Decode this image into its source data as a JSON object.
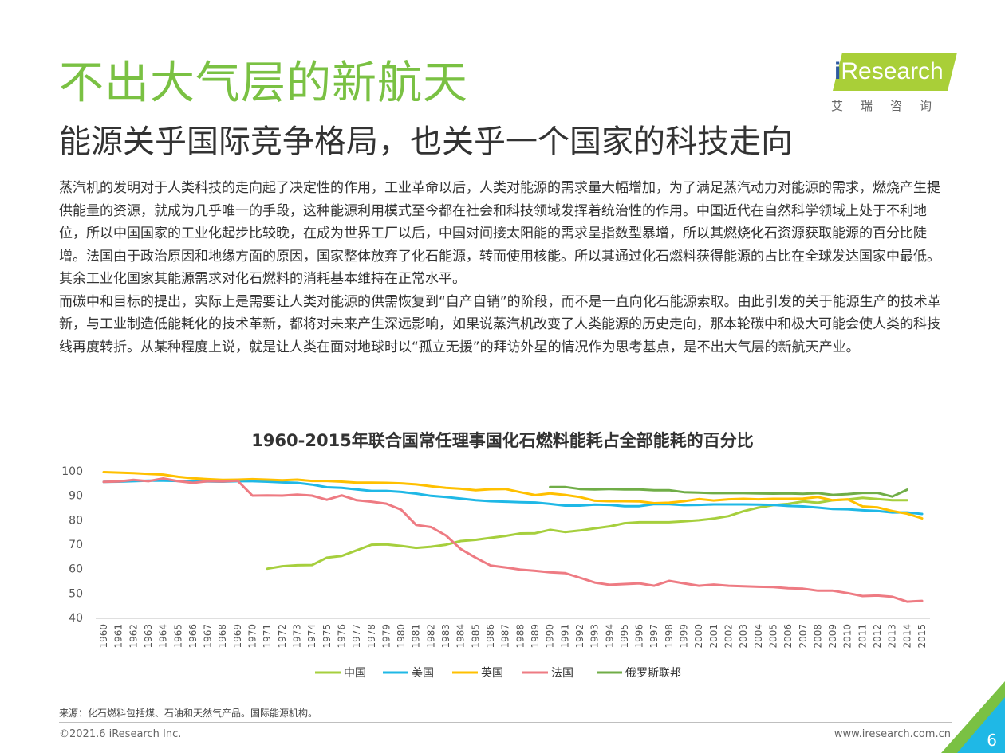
{
  "header": {
    "title": "不出大气层的新航天",
    "subtitle": "能源关乎国际竞争格局，也关乎一个国家的科技走向"
  },
  "logo": {
    "brand_prefix": "i",
    "brand_text": "Research",
    "brand_cn": "艾瑞咨询",
    "badge_color": "#a9cf38"
  },
  "body": {
    "paragraphs": [
      "蒸汽机的发明对于人类科技的走向起了决定性的作用，工业革命以后，人类对能源的需求量大幅增加，为了满足蒸汽动力对能源的需求，燃烧产生提供能量的资源，就成为几乎唯一的手段，这种能源利用模式至今都在社会和科技领域发挥着统治性的作用。中国近代在自然科学领域上处于不利地位，所以中国国家的工业化起步比较晚，在成为世界工厂以后，中国对间接太阳能的需求呈指数型暴增，所以其燃烧化石资源获取能源的百分比陡增。法国由于政治原因和地缘方面的原因，国家整体放弃了化石能源，转而使用核能。所以其通过化石燃料获得能源的占比在全球发达国家中最低。其余工业化国家其能源需求对化石燃料的消耗基本维持在正常水平。",
      "而碳中和目标的提出，实际上是需要让人类对能源的供需恢复到“自产自销”的阶段，而不是一直向化石能源索取。由此引发的关于能源生产的技术革新，与工业制造低能耗化的技术革新，都将对未来产生深远影响，如果说蒸汽机改变了人类能源的历史走向，那本轮碳中和极大可能会使人类的科技线再度转折。从某种程度上说，就是让人类在面对地球时以“孤立无援”的拜访外星的情况作为思考基点，是不出大气层的新航天产业。"
    ]
  },
  "chart_data": {
    "type": "line",
    "title": "1960-2015年联合国常任理事国化石燃料能耗占全部能耗的百分比",
    "xlabel": "",
    "ylabel": "",
    "ylim": [
      40,
      100
    ],
    "yticks": [
      40,
      50,
      60,
      70,
      80,
      90,
      100
    ],
    "grid": false,
    "legend_position": "bottom",
    "x": [
      1960,
      1961,
      1962,
      1963,
      1964,
      1965,
      1966,
      1967,
      1968,
      1969,
      1970,
      1971,
      1972,
      1973,
      1974,
      1975,
      1976,
      1977,
      1978,
      1979,
      1980,
      1981,
      1982,
      1983,
      1984,
      1985,
      1986,
      1987,
      1988,
      1989,
      1990,
      1991,
      1992,
      1993,
      1994,
      1995,
      1996,
      1997,
      1998,
      1999,
      2000,
      2001,
      2002,
      2003,
      2004,
      2005,
      2006,
      2007,
      2008,
      2009,
      2010,
      2011,
      2012,
      2013,
      2014,
      2015
    ],
    "series": [
      {
        "name": "中国",
        "color": "#a6cf3d",
        "values": [
          null,
          null,
          null,
          null,
          null,
          null,
          null,
          null,
          null,
          null,
          null,
          60,
          61,
          61.4,
          61.5,
          64.5,
          65.2,
          67.5,
          69.8,
          69.9,
          69.3,
          68.5,
          69,
          69.8,
          71.3,
          71.8,
          72.6,
          73.4,
          74.4,
          74.5,
          75.9,
          75,
          75.6,
          76.5,
          77.3,
          78.6,
          79,
          79,
          79,
          79.4,
          79.8,
          80.5,
          81.5,
          83.5,
          85,
          86,
          86.5,
          87.5,
          87,
          88,
          88.3,
          89,
          88.5,
          88,
          88,
          null
        ]
      },
      {
        "name": "美国",
        "color": "#1fb8e6",
        "values": [
          95.5,
          95.6,
          95.8,
          96,
          96,
          95.9,
          95.7,
          95.7,
          95.6,
          95.8,
          95.8,
          95.6,
          95.3,
          95.1,
          94.4,
          93.3,
          93.1,
          92.4,
          91.8,
          91.8,
          91.4,
          90.7,
          89.8,
          89.3,
          88.7,
          88,
          87.6,
          87.4,
          87.2,
          87.1,
          86.5,
          85.8,
          85.8,
          86.2,
          86.1,
          85.6,
          85.6,
          86.4,
          86.4,
          86,
          86.1,
          86.3,
          86.3,
          86.3,
          86.2,
          86.1,
          85.7,
          85.5,
          85,
          84.4,
          84.3,
          83.9,
          83.6,
          83,
          83,
          82.4
        ]
      },
      {
        "name": "英国",
        "color": "#ffc000",
        "values": [
          99.5,
          99.3,
          99.1,
          98.8,
          98.5,
          97.6,
          97,
          96.6,
          96.3,
          96.4,
          96.6,
          96.4,
          96.2,
          96.4,
          95.9,
          95.9,
          95.6,
          95.2,
          95.2,
          95.1,
          94.9,
          94.5,
          93.7,
          93.1,
          92.7,
          92.1,
          92.5,
          92.6,
          91.3,
          90.1,
          90.8,
          90.2,
          89.3,
          87.8,
          87.6,
          87.6,
          87.5,
          86.8,
          87,
          87.6,
          88.5,
          87.9,
          88.4,
          88.6,
          88.4,
          88.6,
          88.6,
          88.7,
          89.3,
          88,
          88.4,
          85.5,
          85.1,
          83.6,
          82.5,
          80.6
        ]
      },
      {
        "name": "法国",
        "color": "#ee7b83",
        "values": [
          95.5,
          95.7,
          96.3,
          95.8,
          96.9,
          95.8,
          95.1,
          95.8,
          95.7,
          96,
          89.9,
          90,
          89.9,
          90.3,
          89.9,
          88.2,
          90,
          88,
          87.4,
          86.6,
          84.1,
          77.9,
          77,
          73.6,
          68,
          64.5,
          61.3,
          60.5,
          59.6,
          59.1,
          58.5,
          58.2,
          56.3,
          54.3,
          53.4,
          53.7,
          54,
          53,
          55,
          54,
          53,
          53.5,
          53,
          52.8,
          52.6,
          52.5,
          52,
          51.8,
          51,
          51,
          50,
          48.8,
          49,
          48.5,
          46.5,
          46.8
        ]
      },
      {
        "name": "俄罗斯联邦",
        "color": "#70ad47",
        "values": [
          null,
          null,
          null,
          null,
          null,
          null,
          null,
          null,
          null,
          null,
          null,
          null,
          null,
          null,
          null,
          null,
          null,
          null,
          null,
          null,
          null,
          null,
          null,
          null,
          null,
          null,
          null,
          null,
          null,
          null,
          93.4,
          93.4,
          92.6,
          92.4,
          92.6,
          92.4,
          92.4,
          92.1,
          92.1,
          91.3,
          91.1,
          90.9,
          90.9,
          90.9,
          90.8,
          90.7,
          90.8,
          90.6,
          90.9,
          90.2,
          90.5,
          91,
          91,
          89.5,
          92.3,
          null
        ]
      }
    ]
  },
  "footer": {
    "source": "来源：化石燃料包括煤、石油和天然气产品。国际能源机构。",
    "copyright": "©2021.6 iResearch Inc.",
    "website": "www.iresearch.com.cn",
    "page_number": "6"
  }
}
